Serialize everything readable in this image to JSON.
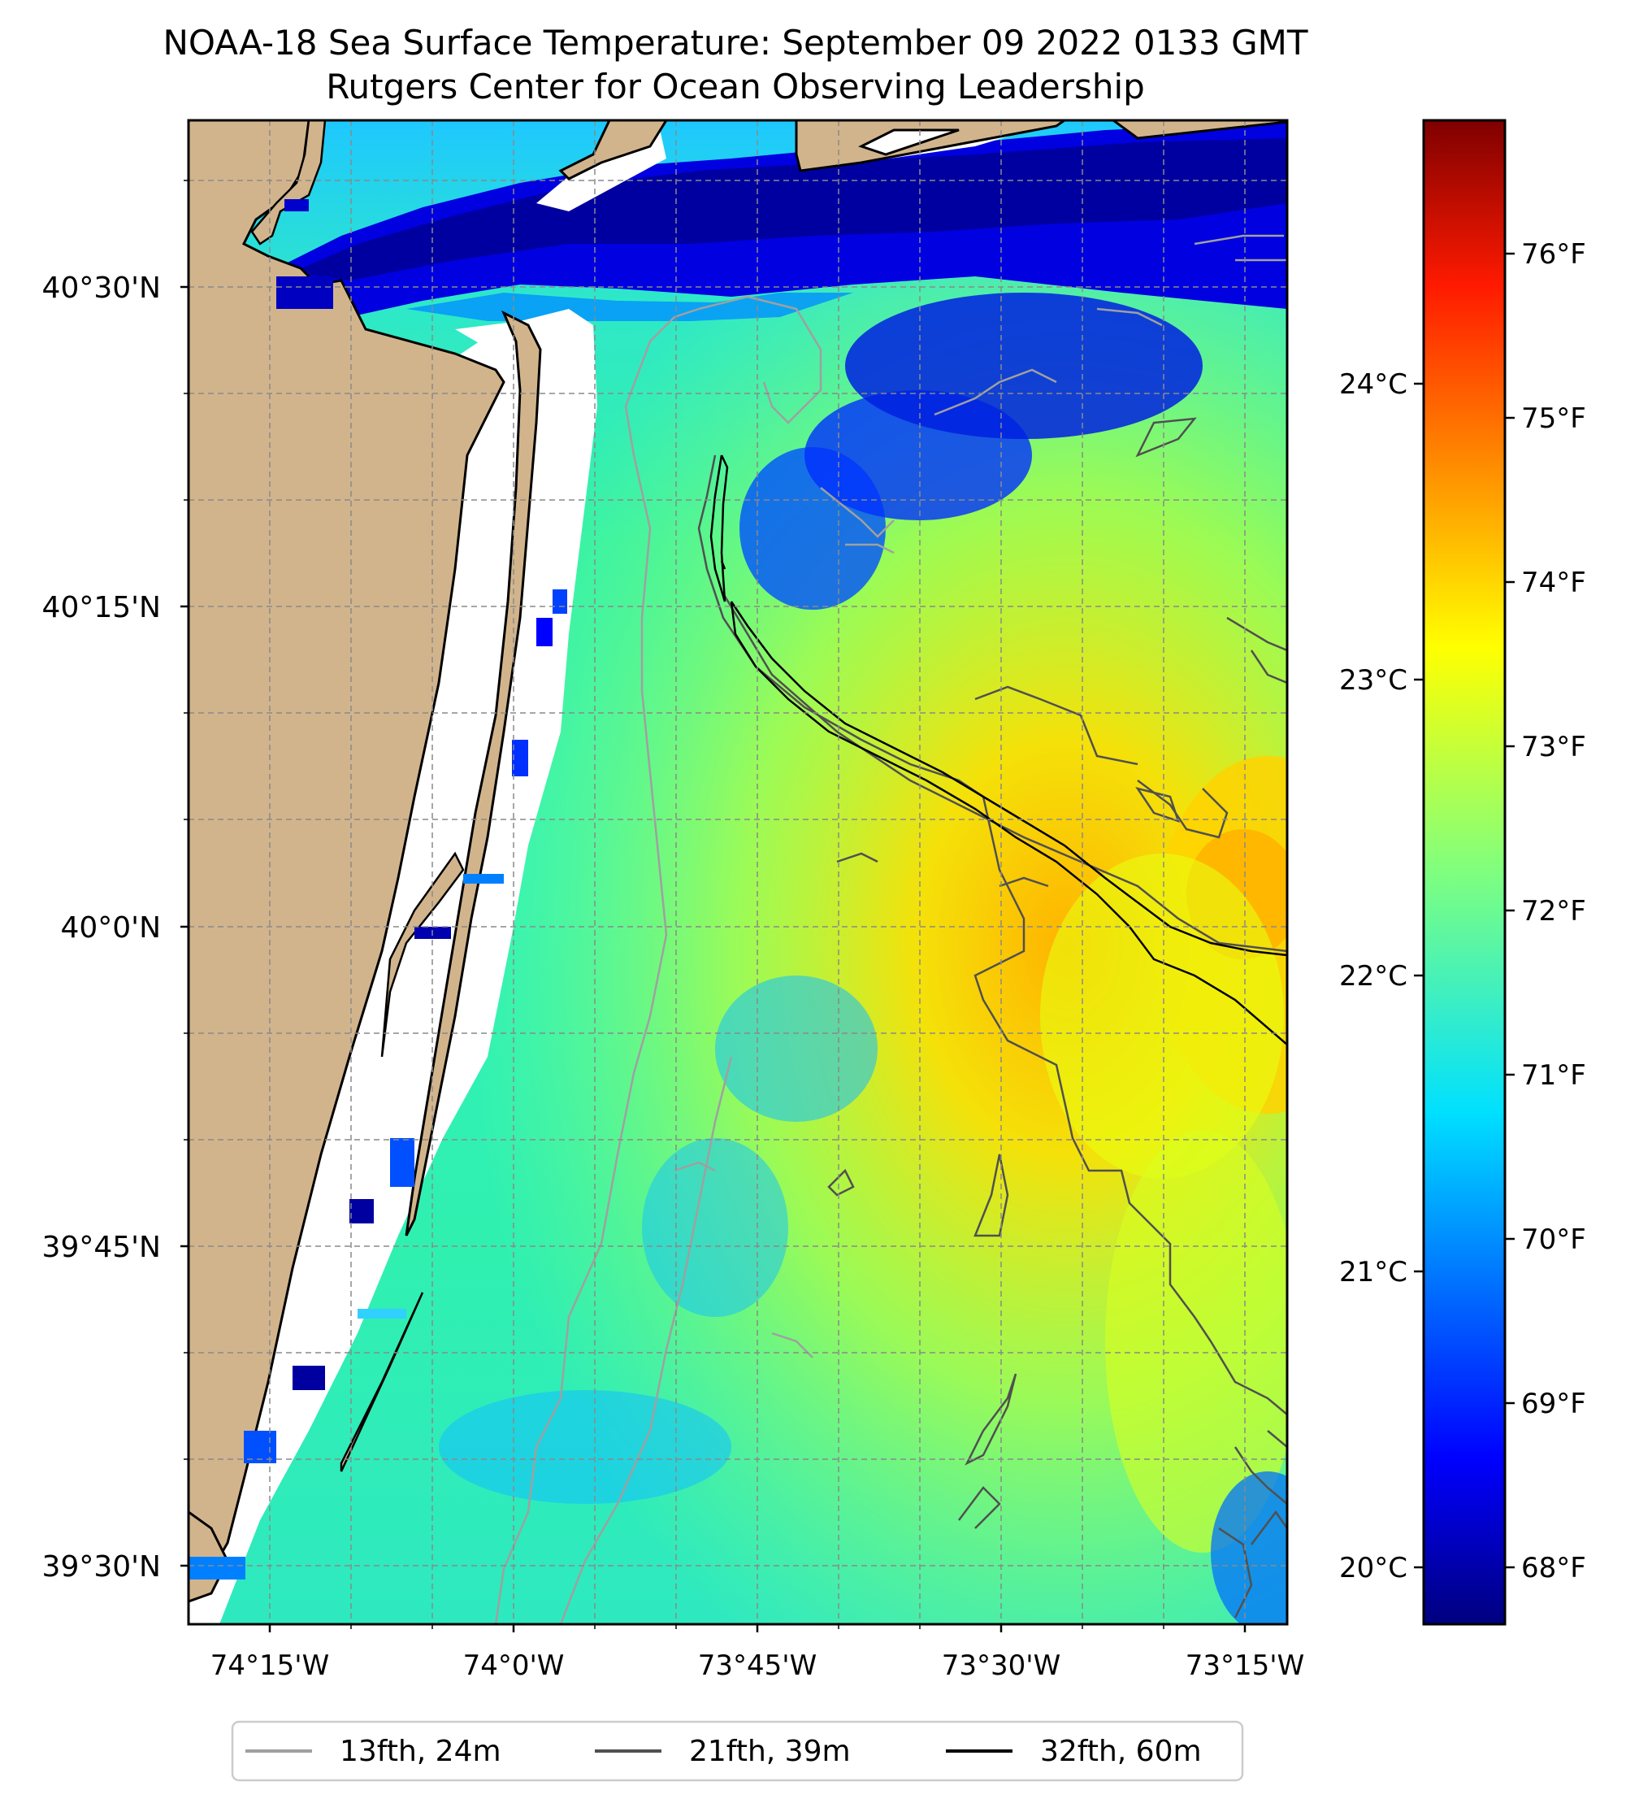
{
  "title": {
    "line1": "NOAA-18 Sea Surface Temperature: September 09 2022 0133 GMT",
    "line2": "Rutgers Center for Ocean Observing Leadership"
  },
  "map": {
    "lat_labels": [
      "40°30'N",
      "40°15'N",
      "40°0'N",
      "39°45'N",
      "39°30'N"
    ],
    "lon_labels": [
      "74°15'W",
      "74°0'W",
      "73°45'W",
      "73°30'W",
      "73°15'W"
    ],
    "lon_range": [
      -74.33,
      -73.21
    ],
    "lat_range": [
      39.43,
      40.61
    ],
    "land_color": "#d2b48c",
    "nodata_color": "#ffffff",
    "gridlines": true
  },
  "colorbar": {
    "colormap": "jet",
    "fahrenheit_labels": [
      "76°F",
      "75°F",
      "74°F",
      "73°F",
      "72°F",
      "71°F",
      "70°F",
      "69°F",
      "68°F"
    ],
    "celsius_labels": [
      "24°C",
      "23°C",
      "22°C",
      "21°C",
      "20°C"
    ],
    "range_f": [
      67.7,
      76.8
    ]
  },
  "legend": {
    "items": [
      {
        "label": "13fth, 24m",
        "color": "#a0a0a0"
      },
      {
        "label": "21fth, 39m",
        "color": "#505050"
      },
      {
        "label": "32fth, 60m",
        "color": "#000000"
      }
    ]
  }
}
